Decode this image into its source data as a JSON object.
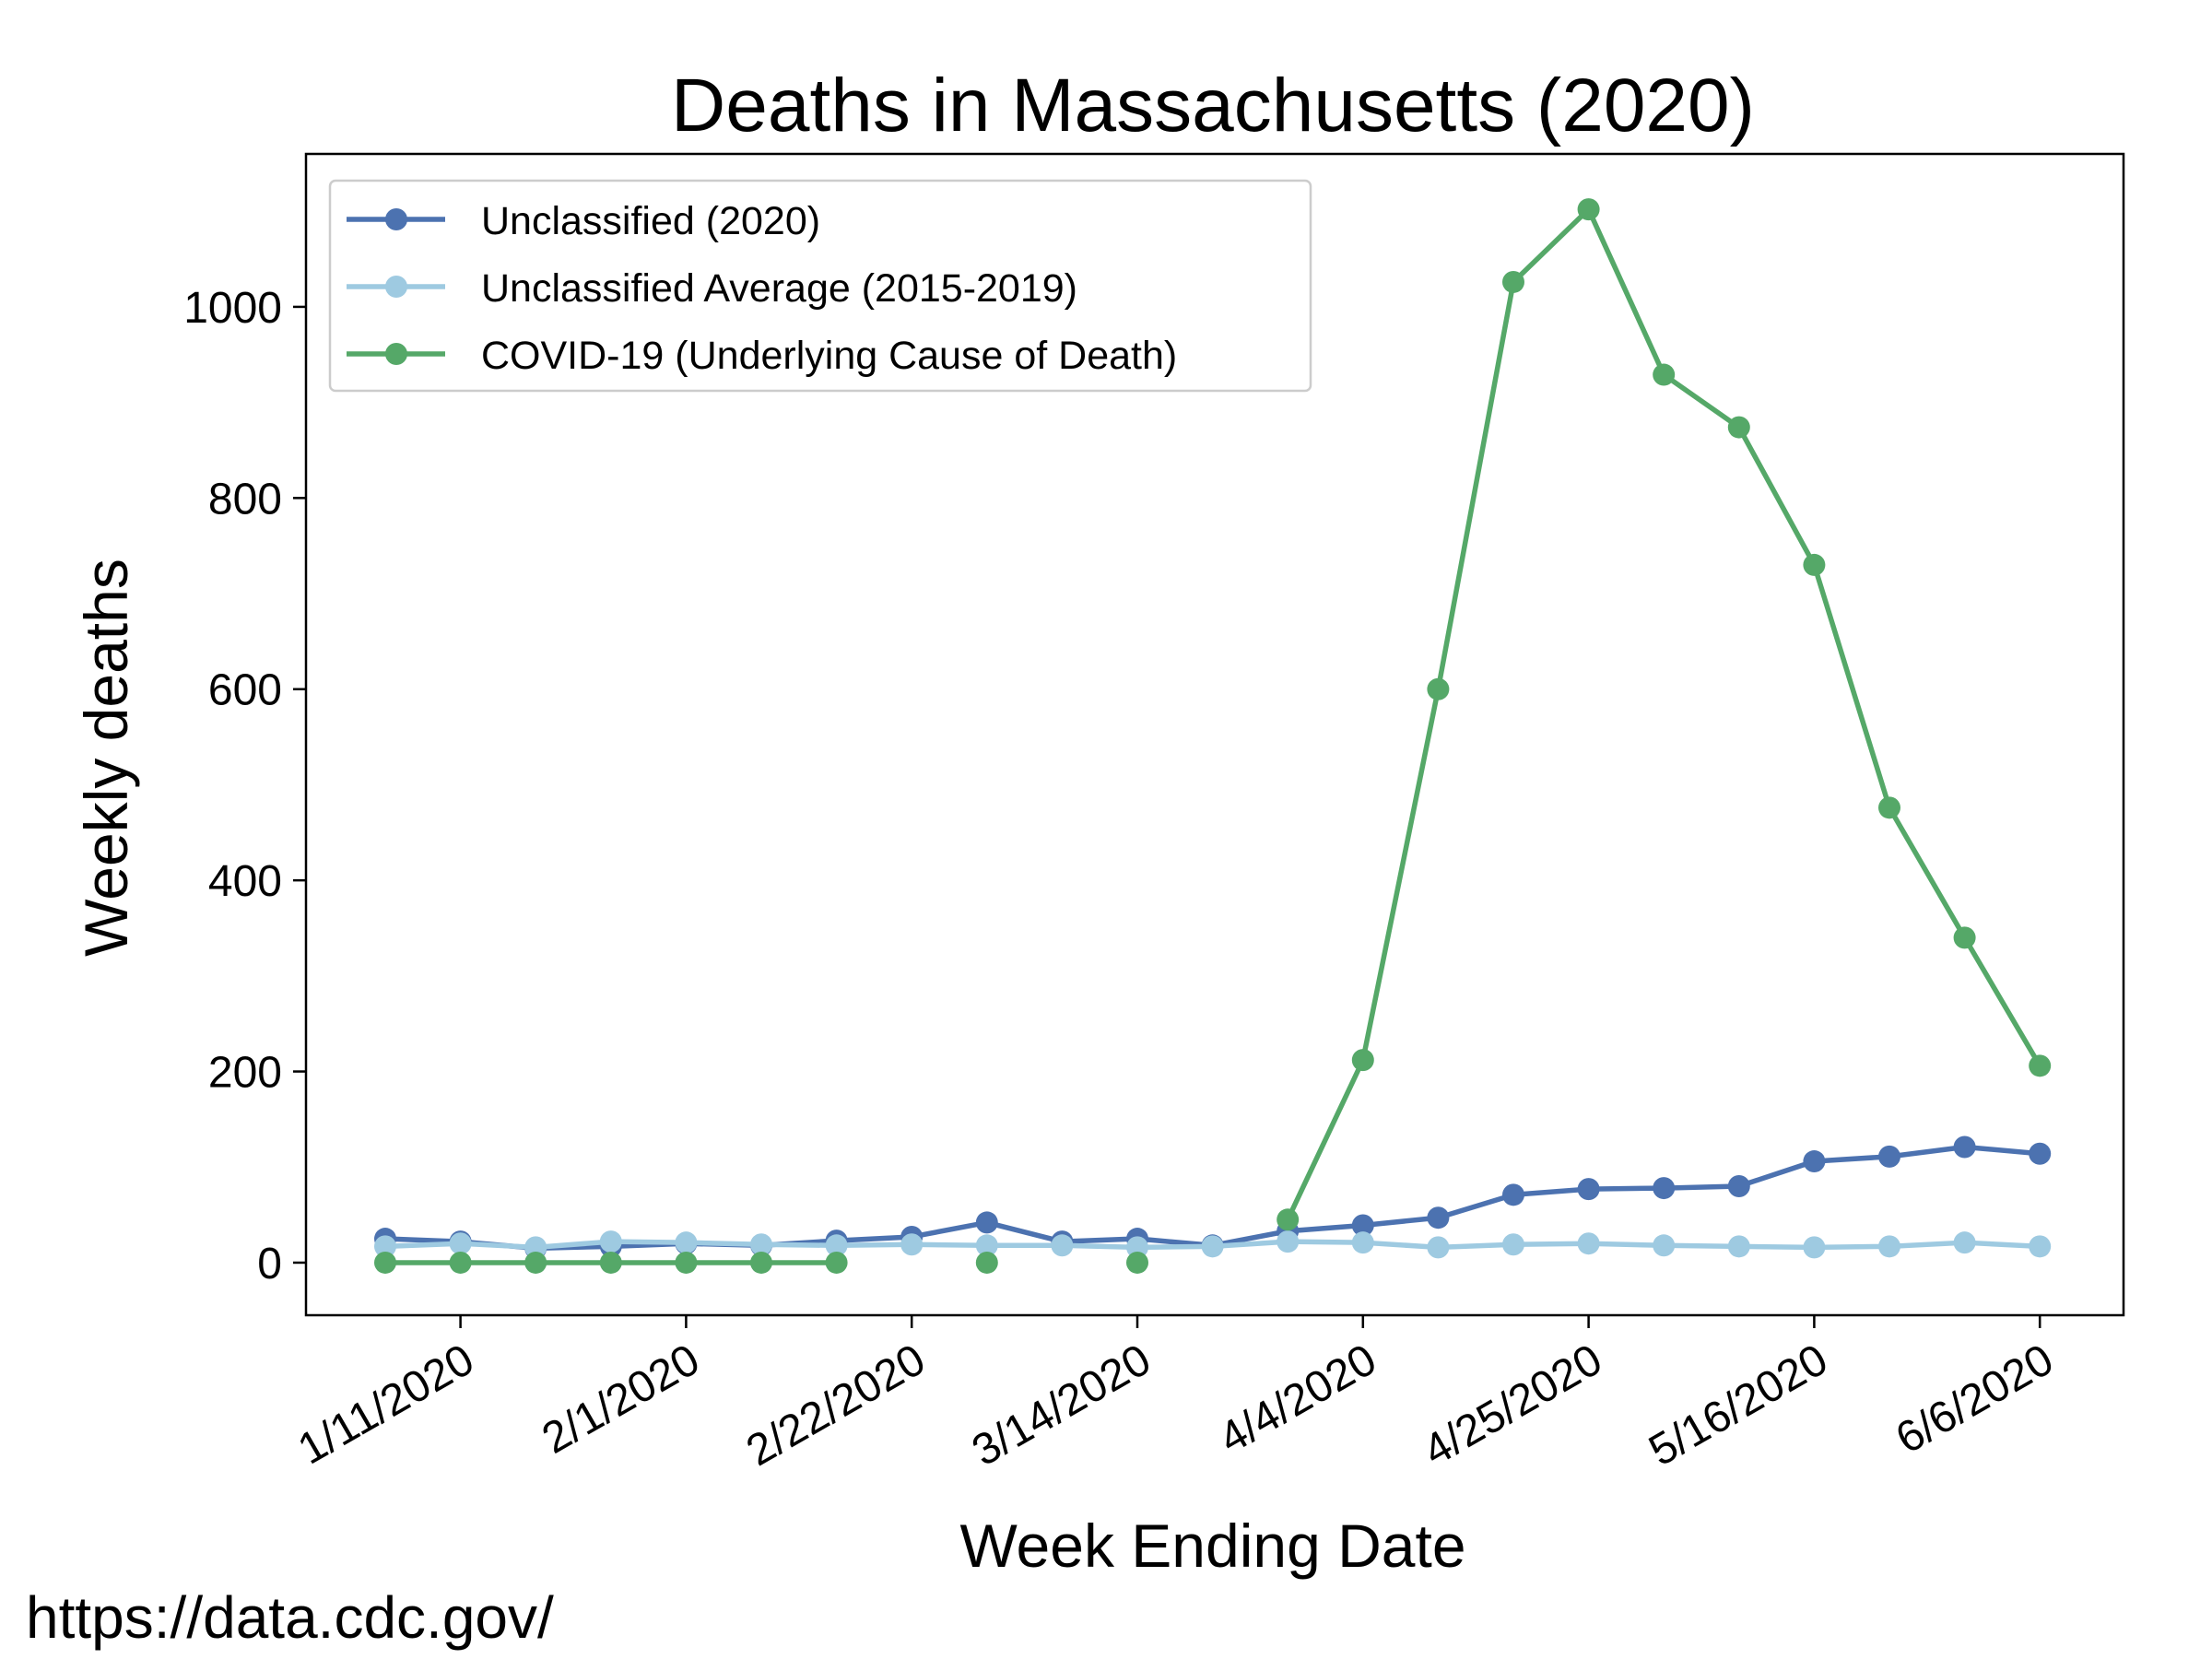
{
  "source_text": "https://data.cdc.gov/",
  "chart_data": {
    "type": "line",
    "title": "Deaths in Massachusetts (2020)",
    "xlabel": "Week Ending Date",
    "ylabel": "Weekly deaths",
    "x": [
      "1/4/2020",
      "1/11/2020",
      "1/18/2020",
      "1/25/2020",
      "2/1/2020",
      "2/8/2020",
      "2/15/2020",
      "2/22/2020",
      "2/29/2020",
      "3/7/2020",
      "3/14/2020",
      "3/21/2020",
      "3/28/2020",
      "4/4/2020",
      "4/11/2020",
      "4/18/2020",
      "4/25/2020",
      "5/2/2020",
      "5/9/2020",
      "5/16/2020",
      "5/23/2020",
      "5/30/2020",
      "6/6/2020"
    ],
    "x_tick_labels": [
      "1/11/2020",
      "2/1/2020",
      "2/22/2020",
      "3/14/2020",
      "4/4/2020",
      "4/25/2020",
      "5/16/2020",
      "6/6/2020"
    ],
    "ylim": [
      -55,
      1160
    ],
    "y_ticks": [
      0,
      200,
      400,
      600,
      800,
      1000
    ],
    "grid": false,
    "legend_position": "top-left",
    "series": [
      {
        "name": "Unclassified (2020)",
        "color": "#4c72b0",
        "values": [
          25,
          22,
          15,
          17,
          20,
          18,
          23,
          27,
          42,
          22,
          25,
          18,
          33,
          39,
          47,
          71,
          77,
          78,
          80,
          106,
          111,
          121,
          114
        ]
      },
      {
        "name": "Unclassified Average (2015-2019)",
        "color": "#9ecae1",
        "values": [
          17,
          20,
          16,
          22,
          21,
          19,
          18,
          19,
          18,
          18,
          16,
          17,
          22,
          21,
          16,
          19,
          20,
          18,
          17,
          16,
          17,
          21,
          17
        ]
      },
      {
        "name": "COVID-19 (Underlying Cause of Death)",
        "color": "#55a868",
        "values": [
          0,
          0,
          0,
          0,
          0,
          0,
          0,
          null,
          0,
          null,
          0,
          null,
          45,
          212,
          600,
          1026,
          1102,
          929,
          874,
          730,
          476,
          340,
          206
        ]
      }
    ]
  }
}
